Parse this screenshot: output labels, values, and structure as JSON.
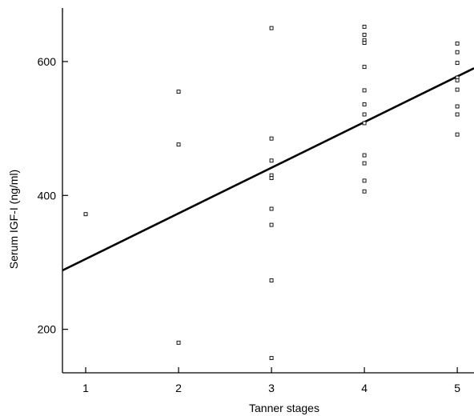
{
  "chart_data": {
    "type": "scatter",
    "title": "",
    "xlabel": "Tanner stages",
    "ylabel": "Serum IGF-I (ng/ml)",
    "xlim": [
      0.75,
      5.18
    ],
    "ylim": [
      135,
      680
    ],
    "x_ticks": [
      1,
      2,
      3,
      4,
      5
    ],
    "x_tick_labels": [
      "1",
      "2",
      "3",
      "4",
      "5"
    ],
    "y_ticks": [
      200,
      400,
      600
    ],
    "y_tick_labels": [
      "200",
      "400",
      "600"
    ],
    "grid": false,
    "legend": "none",
    "points": [
      {
        "x": 1,
        "y": 372
      },
      {
        "x": 2,
        "y": 555
      },
      {
        "x": 2,
        "y": 476
      },
      {
        "x": 2,
        "y": 180
      },
      {
        "x": 3,
        "y": 650
      },
      {
        "x": 3,
        "y": 485
      },
      {
        "x": 3,
        "y": 452
      },
      {
        "x": 3,
        "y": 430
      },
      {
        "x": 3,
        "y": 426
      },
      {
        "x": 3,
        "y": 380
      },
      {
        "x": 3,
        "y": 356
      },
      {
        "x": 3,
        "y": 273
      },
      {
        "x": 3,
        "y": 157
      },
      {
        "x": 4,
        "y": 652
      },
      {
        "x": 4,
        "y": 640
      },
      {
        "x": 4,
        "y": 632
      },
      {
        "x": 4,
        "y": 628
      },
      {
        "x": 4,
        "y": 592
      },
      {
        "x": 4,
        "y": 557
      },
      {
        "x": 4,
        "y": 536
      },
      {
        "x": 4,
        "y": 521
      },
      {
        "x": 4,
        "y": 508
      },
      {
        "x": 4,
        "y": 460
      },
      {
        "x": 4,
        "y": 448
      },
      {
        "x": 4,
        "y": 422
      },
      {
        "x": 4,
        "y": 406
      },
      {
        "x": 5,
        "y": 627
      },
      {
        "x": 5,
        "y": 614
      },
      {
        "x": 5,
        "y": 598
      },
      {
        "x": 5,
        "y": 576
      },
      {
        "x": 5,
        "y": 572
      },
      {
        "x": 5,
        "y": 558
      },
      {
        "x": 5,
        "y": 533
      },
      {
        "x": 5,
        "y": 521
      },
      {
        "x": 5,
        "y": 491
      }
    ],
    "regression_line": {
      "x": [
        0.75,
        5.18
      ],
      "y": [
        288,
        590
      ]
    },
    "colors": {
      "axis": "#000000",
      "marker_stroke": "#000000",
      "marker_fill": "#ffffff",
      "line": "#000000",
      "background": "#ffffff"
    }
  }
}
